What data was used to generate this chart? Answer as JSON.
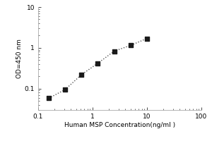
{
  "title": "",
  "xlabel": "Human MSP Concentration(ng/ml )",
  "ylabel": "OD=450 nm",
  "x_data": [
    0.156,
    0.313,
    0.625,
    1.25,
    2.5,
    5.0,
    10.0
  ],
  "y_data": [
    0.058,
    0.095,
    0.22,
    0.42,
    0.83,
    1.15,
    1.7
  ],
  "marker": "s",
  "marker_color": "#1a1a1a",
  "marker_size": 4.5,
  "line_style": ":",
  "line_color": "#555555",
  "line_width": 1.0,
  "xlim": [
    0.1,
    100
  ],
  "ylim": [
    0.03,
    10
  ],
  "x_ticks": [
    0.1,
    1,
    10,
    100
  ],
  "x_tick_labels": [
    "0.1",
    "1",
    "10",
    "100"
  ],
  "y_ticks": [
    0.1,
    1,
    10
  ],
  "y_tick_labels": [
    "0.1",
    "1",
    "10"
  ],
  "background_color": "#ffffff",
  "tick_fontsize": 6.5,
  "label_fontsize": 6.5,
  "spine_color": "#aaaaaa"
}
